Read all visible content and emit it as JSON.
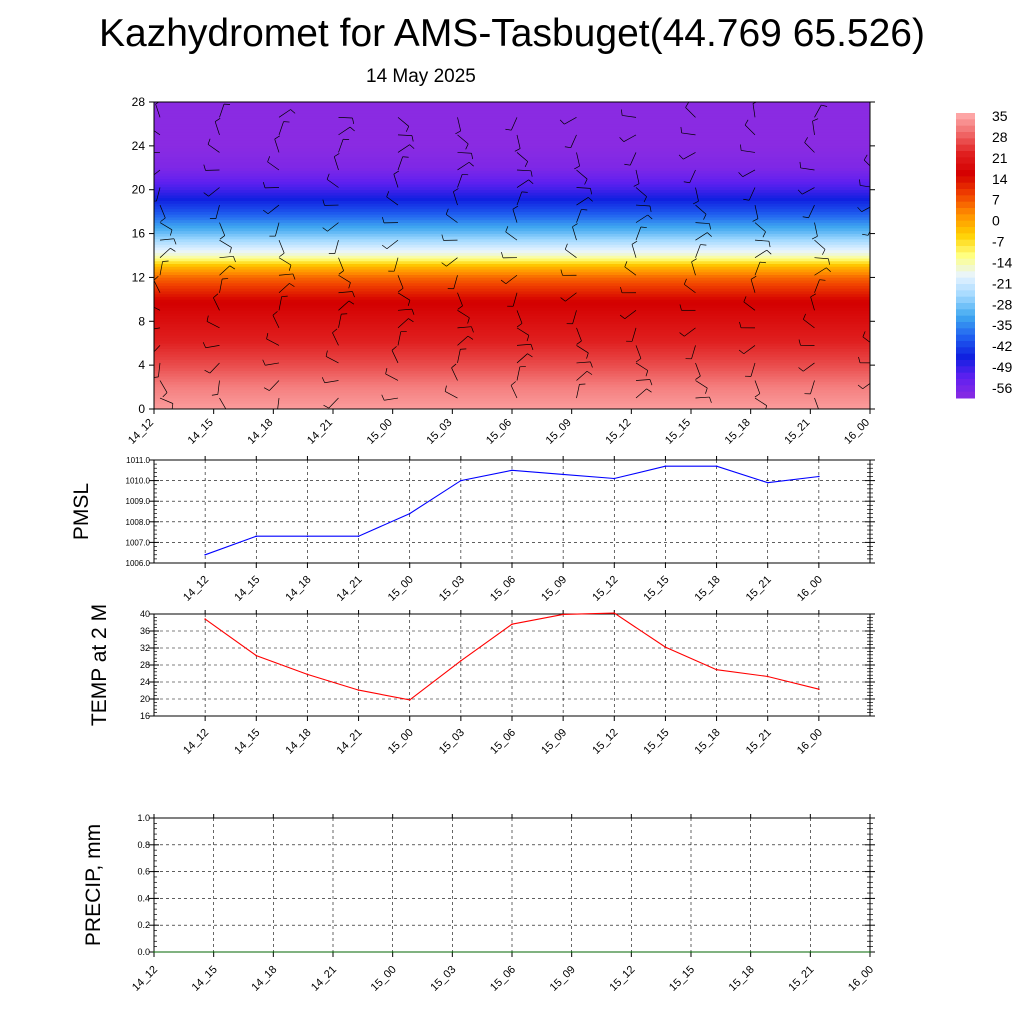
{
  "header": {
    "title": "Kazhydromet for AMS-Tasbuget(44.769 65.526)",
    "subtitle": "14 May 2025"
  },
  "time_labels": [
    "14_12",
    "14_15",
    "14_18",
    "14_21",
    "15_00",
    "15_03",
    "15_06",
    "15_09",
    "15_12",
    "15_15",
    "15_18",
    "15_21",
    "16_00"
  ],
  "colors": {
    "pmsl_line": "#0000ff",
    "temp_line": "#ff0000",
    "precip_line": "#006400",
    "colorbar": [
      "#ffb0b0",
      "#f06a6a",
      "#e02020",
      "#d40000",
      "#f04000",
      "#ff9000",
      "#ffd000",
      "#ffff80",
      "#e8f4ff",
      "#a0d8ff",
      "#40a8f0",
      "#2060f0",
      "#1020e0",
      "#6020f0",
      "#8a2be2"
    ]
  },
  "chart_data": [
    {
      "type": "heatmap",
      "title": "",
      "xlabel": "",
      "ylabel": "",
      "categories": [
        "14_12",
        "14_15",
        "14_18",
        "14_21",
        "15_00",
        "15_03",
        "15_06",
        "15_09",
        "15_12",
        "15_15",
        "15_18",
        "15_21",
        "16_00"
      ],
      "yticks": [
        "0",
        "4",
        "8",
        "12",
        "16",
        "20",
        "24",
        "28"
      ],
      "ylim": [
        0,
        28
      ],
      "colorbar_labels": [
        "35",
        "28",
        "21",
        "14",
        "7",
        "0",
        "-7",
        "-14",
        "-21",
        "-28",
        "-35",
        "-42",
        "-49",
        "-56"
      ],
      "colorbar_range": [
        -60,
        40
      ],
      "levels": [
        0,
        2,
        4,
        6,
        8,
        10,
        12,
        13,
        14,
        16,
        18,
        20,
        22,
        24,
        28
      ],
      "values_by_level": [
        38,
        35,
        30,
        26,
        22,
        18,
        8,
        0,
        -14,
        -28,
        -40,
        -50,
        -58,
        -60,
        -62
      ],
      "annotations": "wind barbs"
    },
    {
      "type": "line",
      "title": "",
      "ylabel": "PMSL",
      "categories": [
        "14_12",
        "14_15",
        "14_18",
        "14_21",
        "15_00",
        "15_03",
        "15_06",
        "15_09",
        "15_12",
        "15_15",
        "15_18",
        "15_21",
        "16_00"
      ],
      "yticks": [
        "1006.0",
        "1007.0",
        "1008.0",
        "1009.0",
        "1010.0",
        "1011.0"
      ],
      "ylim": [
        1006.0,
        1011.0
      ],
      "series": [
        {
          "values": [
            1006.4,
            1007.3,
            1007.3,
            1007.3,
            1008.4,
            1010.0,
            1010.5,
            1010.3,
            1010.1,
            1010.7,
            1010.7,
            1009.9,
            1010.2
          ]
        }
      ]
    },
    {
      "type": "line",
      "title": "",
      "ylabel": "TEMP at 2 M",
      "categories": [
        "14_12",
        "14_15",
        "14_18",
        "14_21",
        "15_00",
        "15_03",
        "15_06",
        "15_09",
        "15_12",
        "15_15",
        "15_18",
        "15_21",
        "16_00"
      ],
      "yticks": [
        "16",
        "20",
        "24",
        "28",
        "32",
        "36",
        "40"
      ],
      "ylim": [
        16,
        40
      ],
      "series": [
        {
          "values": [
            38.8,
            30.2,
            25.8,
            22.1,
            19.8,
            29.0,
            37.6,
            39.9,
            40.2,
            32.2,
            26.9,
            25.3,
            22.3
          ]
        }
      ]
    },
    {
      "type": "line",
      "title": "",
      "ylabel": "PRECIP, mm",
      "categories": [
        "14_12",
        "14_15",
        "14_18",
        "14_21",
        "15_00",
        "15_03",
        "15_06",
        "15_09",
        "15_12",
        "15_15",
        "15_18",
        "15_21",
        "16_00"
      ],
      "yticks": [
        "0.0",
        "0.2",
        "0.4",
        "0.6",
        "0.8",
        "1.0"
      ],
      "ylim": [
        0.0,
        1.0
      ],
      "series": [
        {
          "values": [
            0,
            0,
            0,
            0,
            0,
            0,
            0,
            0,
            0,
            0,
            0,
            0,
            0
          ]
        }
      ]
    }
  ]
}
